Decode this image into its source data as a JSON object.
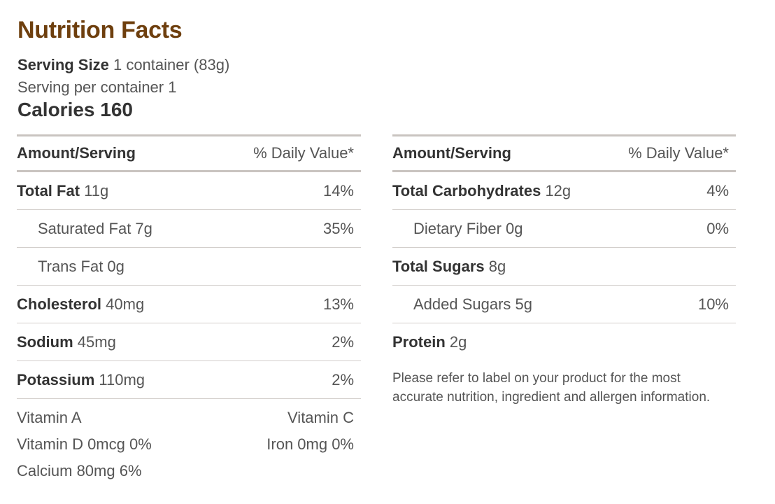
{
  "title": "Nutrition Facts",
  "serving": {
    "size_label": "Serving Size",
    "size_value": "1 container (83g)",
    "per_container": "Serving per container 1"
  },
  "calories": "Calories 160",
  "left": {
    "header": {
      "amount": "Amount/Serving",
      "dv": "% Daily Value*"
    },
    "rows": [
      {
        "name": "Total Fat",
        "amount": "11g",
        "dv": "14%"
      },
      {
        "name": "",
        "amount": "Saturated Fat 7g",
        "dv": "35%"
      },
      {
        "name": "",
        "amount": "Trans Fat 0g",
        "dv": ""
      },
      {
        "name": "Cholesterol",
        "amount": "40mg",
        "dv": "13%"
      },
      {
        "name": "Sodium",
        "amount": "45mg",
        "dv": "2%"
      },
      {
        "name": "Potassium",
        "amount": "110mg",
        "dv": "2%"
      }
    ],
    "vitamins": [
      {
        "left": "Vitamin A",
        "right": "Vitamin C"
      },
      {
        "left": "Vitamin D 0mcg 0%",
        "right": "Iron 0mg 0%"
      },
      {
        "left": "Calcium 80mg 6%",
        "right": ""
      }
    ]
  },
  "right": {
    "header": {
      "amount": "Amount/Serving",
      "dv": "% Daily Value*"
    },
    "rows": [
      {
        "name": "Total Carbohydrates",
        "amount": "12g",
        "dv": "4%"
      },
      {
        "name": "",
        "amount": "Dietary Fiber 0g",
        "dv": "0%"
      },
      {
        "name": "Total Sugars",
        "amount": "8g",
        "dv": ""
      },
      {
        "name": "",
        "amount": "Added Sugars 5g",
        "dv": "10%"
      },
      {
        "name": "Protein",
        "amount": "2g",
        "dv": ""
      }
    ]
  },
  "disclaimer": "Please refer to label on your product for the most accurate nutrition, ingredient and allergen information."
}
